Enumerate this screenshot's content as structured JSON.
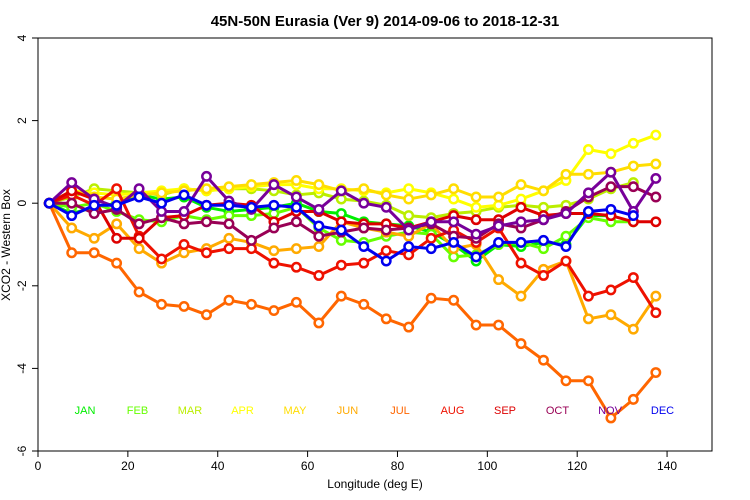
{
  "chart_data": {
    "type": "line",
    "title": "45N-50N Eurasia (Ver 9)   2014-09-06 to 2018-12-31",
    "xlabel": "Longitude (deg E)",
    "ylabel": "XCO2 - Western Box",
    "xlim": [
      0,
      150
    ],
    "ylim": [
      -6,
      4
    ],
    "xticks": [
      0,
      20,
      40,
      60,
      80,
      100,
      120,
      140
    ],
    "yticks": [
      -6,
      -4,
      -2,
      0,
      2,
      4
    ],
    "x": [
      2.5,
      7.5,
      12.5,
      17.5,
      22.5,
      27.5,
      32.5,
      37.5,
      42.5,
      47.5,
      52.5,
      57.5,
      62.5,
      67.5,
      72.5,
      77.5,
      82.5,
      87.5,
      92.5,
      97.5,
      102.5,
      107.5,
      112.5,
      117.5,
      122.5,
      127.5,
      132.5,
      137.5
    ],
    "series": [
      {
        "name": "JAN",
        "color": "#00ee00",
        "values": [
          0.0,
          -0.25,
          -0.1,
          0.0,
          0.2,
          0.1,
          0.15,
          -0.1,
          -0.2,
          -0.15,
          -0.1,
          0.0,
          -0.2,
          -0.25,
          -0.45,
          -0.5,
          -0.55,
          -0.7,
          -1.0,
          -1.4,
          -1.0,
          -1.05,
          -0.95,
          -1.0,
          -0.3,
          -0.3,
          null,
          null
        ]
      },
      {
        "name": "FEB",
        "color": "#66ff00",
        "values": [
          0.0,
          -0.1,
          0.0,
          -0.2,
          -0.4,
          -0.45,
          -0.3,
          -0.4,
          -0.3,
          -0.3,
          -0.25,
          -0.1,
          -0.6,
          -0.9,
          -0.95,
          -0.8,
          -0.7,
          -0.75,
          -1.3,
          -1.25,
          -1.0,
          -0.95,
          -1.1,
          -0.8,
          -0.35,
          -0.45,
          -0.45,
          null
        ]
      },
      {
        "name": "MAR",
        "color": "#bbee00",
        "values": [
          0.0,
          0.15,
          0.35,
          0.3,
          0.25,
          0.2,
          0.35,
          0.3,
          0.35,
          0.35,
          0.3,
          0.2,
          0.25,
          0.1,
          0.05,
          -0.05,
          -0.3,
          -0.35,
          -0.25,
          -0.2,
          -0.1,
          -0.05,
          -0.1,
          -0.05,
          0.1,
          0.35,
          0.5,
          null
        ]
      },
      {
        "name": "APR",
        "color": "#ffff00",
        "values": [
          0.0,
          0.3,
          0.25,
          0.2,
          0.25,
          0.3,
          0.35,
          0.3,
          0.35,
          0.4,
          0.45,
          0.45,
          0.35,
          0.35,
          0.3,
          0.25,
          0.35,
          0.25,
          0.1,
          -0.1,
          -0.05,
          0.1,
          0.3,
          0.55,
          1.3,
          1.2,
          1.45,
          1.65
        ]
      },
      {
        "name": "MAY",
        "color": "#ffdd00",
        "values": [
          0.0,
          0.3,
          0.15,
          0.1,
          0.2,
          0.25,
          0.3,
          0.35,
          0.4,
          0.45,
          0.5,
          0.55,
          0.45,
          0.3,
          0.35,
          0.2,
          0.1,
          0.2,
          0.35,
          0.15,
          0.15,
          0.45,
          0.3,
          0.7,
          0.7,
          0.75,
          0.9,
          0.95
        ]
      },
      {
        "name": "JUN",
        "color": "#ffaa00",
        "values": [
          0.0,
          -0.6,
          -0.85,
          -0.5,
          -1.1,
          -1.45,
          -1.2,
          -1.1,
          -0.85,
          -0.95,
          -1.15,
          -1.1,
          -1.05,
          -0.45,
          -0.6,
          -0.7,
          -0.8,
          -0.5,
          -1.1,
          -1.0,
          -1.85,
          -2.25,
          -1.6,
          -1.4,
          -2.8,
          -2.7,
          -3.05,
          -2.25
        ]
      },
      {
        "name": "JUL",
        "color": "#ff6600",
        "values": [
          0.0,
          -1.2,
          -1.2,
          -1.45,
          -2.15,
          -2.45,
          -2.5,
          -2.7,
          -2.35,
          -2.45,
          -2.6,
          -2.4,
          -2.9,
          -2.25,
          -2.45,
          -2.8,
          -3.0,
          -2.3,
          -2.35,
          -2.95,
          -2.95,
          -3.4,
          -3.8,
          -4.3,
          -4.3,
          -5.2,
          -4.75,
          -4.1
        ]
      },
      {
        "name": "AUG",
        "color": "#ee1100",
        "values": [
          0.0,
          0.2,
          -0.05,
          0.35,
          -0.8,
          -1.35,
          -1.0,
          -1.2,
          -1.1,
          -1.1,
          -1.45,
          -1.55,
          -1.75,
          -1.5,
          -1.45,
          -1.15,
          -1.25,
          -0.85,
          -0.65,
          -0.95,
          -0.6,
          -1.45,
          -1.75,
          -1.4,
          -2.25,
          -2.1,
          -1.8,
          -2.65
        ]
      },
      {
        "name": "SEP",
        "color": "#dd0000",
        "values": [
          0.0,
          0.3,
          0.1,
          -0.85,
          -0.85,
          -0.35,
          -0.3,
          -0.05,
          0.0,
          -0.05,
          -0.45,
          -0.2,
          -0.2,
          -0.45,
          -0.5,
          -0.5,
          -0.6,
          -0.45,
          -0.3,
          -0.4,
          -0.4,
          -0.1,
          -0.3,
          -0.25,
          -0.25,
          -0.3,
          -0.45,
          -0.45
        ]
      },
      {
        "name": "OCT",
        "color": "#990055",
        "values": [
          0.0,
          0.0,
          -0.25,
          -0.15,
          -0.5,
          -0.35,
          -0.5,
          -0.45,
          -0.5,
          -0.9,
          -0.6,
          -0.45,
          -0.8,
          -0.7,
          -0.6,
          -0.65,
          -0.6,
          -0.5,
          -0.8,
          -0.85,
          -0.5,
          -0.6,
          -0.4,
          -0.2,
          0.15,
          0.4,
          0.4,
          0.15
        ]
      },
      {
        "name": "NOV",
        "color": "#770099",
        "values": [
          0.0,
          0.5,
          0.1,
          -0.1,
          0.35,
          -0.2,
          -0.2,
          0.65,
          0.05,
          -0.15,
          0.45,
          0.15,
          -0.15,
          0.3,
          0.0,
          -0.1,
          -0.65,
          -0.45,
          -0.45,
          -0.75,
          -0.55,
          -0.45,
          -0.4,
          -0.25,
          0.25,
          0.75,
          -0.2,
          0.6
        ]
      },
      {
        "name": "DEC",
        "color": "#0000ee",
        "values": [
          0.0,
          -0.3,
          -0.05,
          -0.05,
          0.15,
          0.0,
          0.2,
          -0.05,
          -0.05,
          -0.1,
          -0.05,
          -0.1,
          -0.55,
          -0.65,
          -1.05,
          -1.4,
          -1.05,
          -1.1,
          -0.95,
          -1.3,
          -0.95,
          -0.95,
          -0.9,
          -1.05,
          -0.2,
          -0.15,
          -0.3,
          null
        ]
      }
    ]
  }
}
